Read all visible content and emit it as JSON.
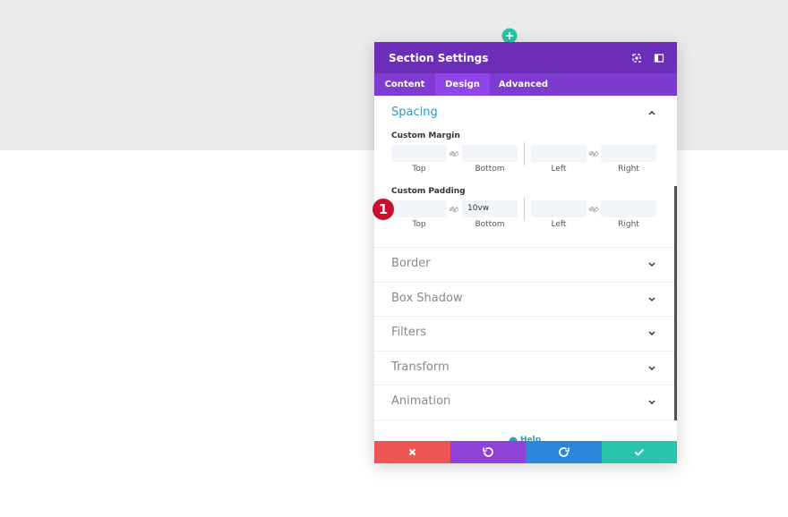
{
  "header": {
    "title": "Section Settings"
  },
  "tabs": [
    "Content",
    "Design",
    "Advanced"
  ],
  "spacing": {
    "title": "Spacing",
    "groups": [
      {
        "label": "Custom Margin",
        "fields": [
          {
            "label": "Top"
          },
          {
            "label": "Bottom"
          },
          {
            "label": "Left"
          },
          {
            "label": "Right"
          }
        ]
      },
      {
        "label": "Custom Padding",
        "fields": [
          {
            "label": "Top"
          },
          {
            "label": "Bottom",
            "value": "10vw"
          },
          {
            "label": "Left"
          },
          {
            "label": "Right"
          }
        ]
      }
    ]
  },
  "badge": 1,
  "sections": [
    "Border",
    "Box Shadow",
    "Filters",
    "Transform",
    "Animation"
  ],
  "help": "Help"
}
